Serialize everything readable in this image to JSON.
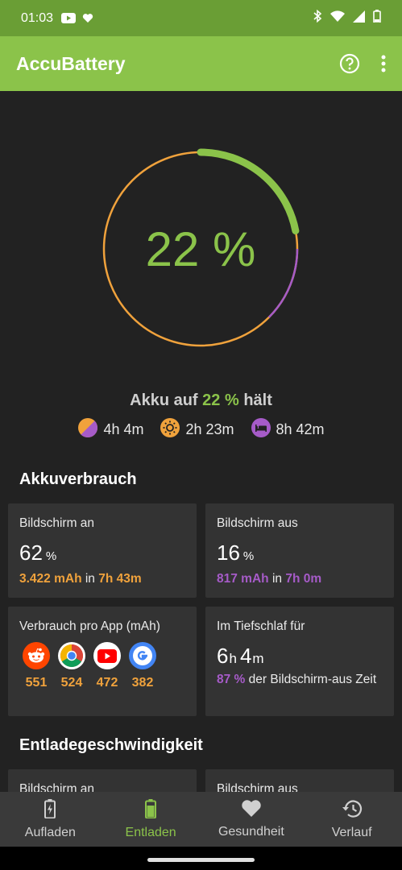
{
  "status_bar": {
    "time": "01:03"
  },
  "app_bar": {
    "title": "AccuBattery"
  },
  "ring": {
    "percent_text": "22 %",
    "charge_fraction": 0.22
  },
  "summary": {
    "prefix": "Akku auf",
    "percent": "22 %",
    "suffix": "hält",
    "estimates": [
      {
        "icon": "mixed-usage-icon",
        "value": "4h 4m"
      },
      {
        "icon": "screen-on-sun-icon",
        "value": "2h 23m"
      },
      {
        "icon": "sleep-bed-icon",
        "value": "8h 42m"
      }
    ]
  },
  "usage": {
    "title": "Akkuverbrauch",
    "screen_on": {
      "label": "Bildschirm an",
      "percent": "62",
      "unit": "%",
      "mah": "3.422 mAh",
      "in": "in",
      "duration": "7h 43m"
    },
    "screen_off": {
      "label": "Bildschirm aus",
      "percent": "16",
      "unit": "%",
      "mah": "817 mAh",
      "in": "in",
      "duration": "7h 0m"
    },
    "per_app": {
      "label": "Verbrauch pro App (mAh)",
      "apps": [
        {
          "icon": "reddit-icon",
          "value": "551"
        },
        {
          "icon": "chrome-icon",
          "value": "524"
        },
        {
          "icon": "youtube-icon",
          "value": "472"
        },
        {
          "icon": "google-icon",
          "value": "382"
        }
      ]
    },
    "deep_sleep": {
      "label": "Im Tiefschlaf für",
      "hours": "6",
      "h": "h",
      "minutes": "4",
      "m": "m",
      "percent": "87 %",
      "rest": "der Bildschirm-aus Zeit"
    }
  },
  "discharge": {
    "title": "Entladegeschwindigkeit",
    "screen_on": "Bildschirm an",
    "screen_off": "Bildschirm aus"
  },
  "nav": {
    "items": [
      {
        "label": "Aufladen"
      },
      {
        "label": "Entladen"
      },
      {
        "label": "Gesundheit"
      },
      {
        "label": "Verlauf"
      }
    ]
  },
  "colors": {
    "accent": "#8bc34a",
    "orange": "#f0a23c",
    "purple": "#a65bc8"
  }
}
